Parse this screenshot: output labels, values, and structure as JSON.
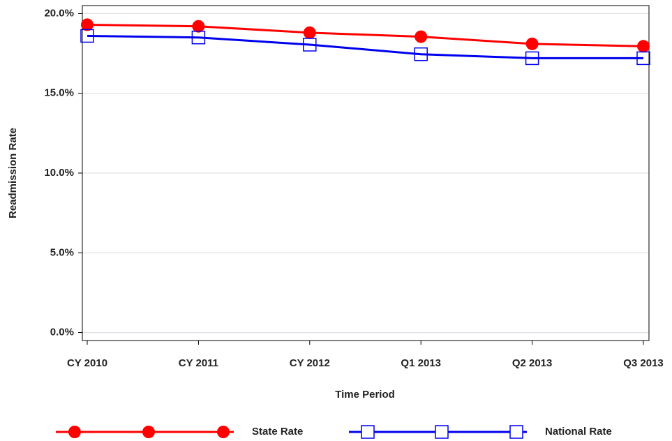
{
  "chart_data": {
    "type": "line",
    "x_label": "Time Period",
    "y_label": "Readmission Rate",
    "categories": [
      "CY 2010",
      "CY 2011",
      "CY 2012",
      "Q1 2013",
      "Q2 2013",
      "Q3 2013"
    ],
    "series": [
      {
        "name": "State Rate",
        "color": "#ff0000",
        "marker": "circle",
        "values": [
          19.3,
          19.2,
          18.8,
          18.55,
          18.1,
          17.95
        ]
      },
      {
        "name": "National Rate",
        "color": "#0000ee",
        "marker": "square",
        "values": [
          18.6,
          18.5,
          18.05,
          17.45,
          17.2,
          17.2
        ]
      }
    ],
    "ylim": [
      -0.5,
      20.5
    ],
    "yticks": [
      {
        "value": 0,
        "label": "0.0%"
      },
      {
        "value": 5,
        "label": "5.0%"
      },
      {
        "value": 10,
        "label": "10.0%"
      },
      {
        "value": 15,
        "label": "15.0%"
      },
      {
        "value": 20,
        "label": "20.0%"
      }
    ],
    "grid": true,
    "legend": "bottom"
  }
}
